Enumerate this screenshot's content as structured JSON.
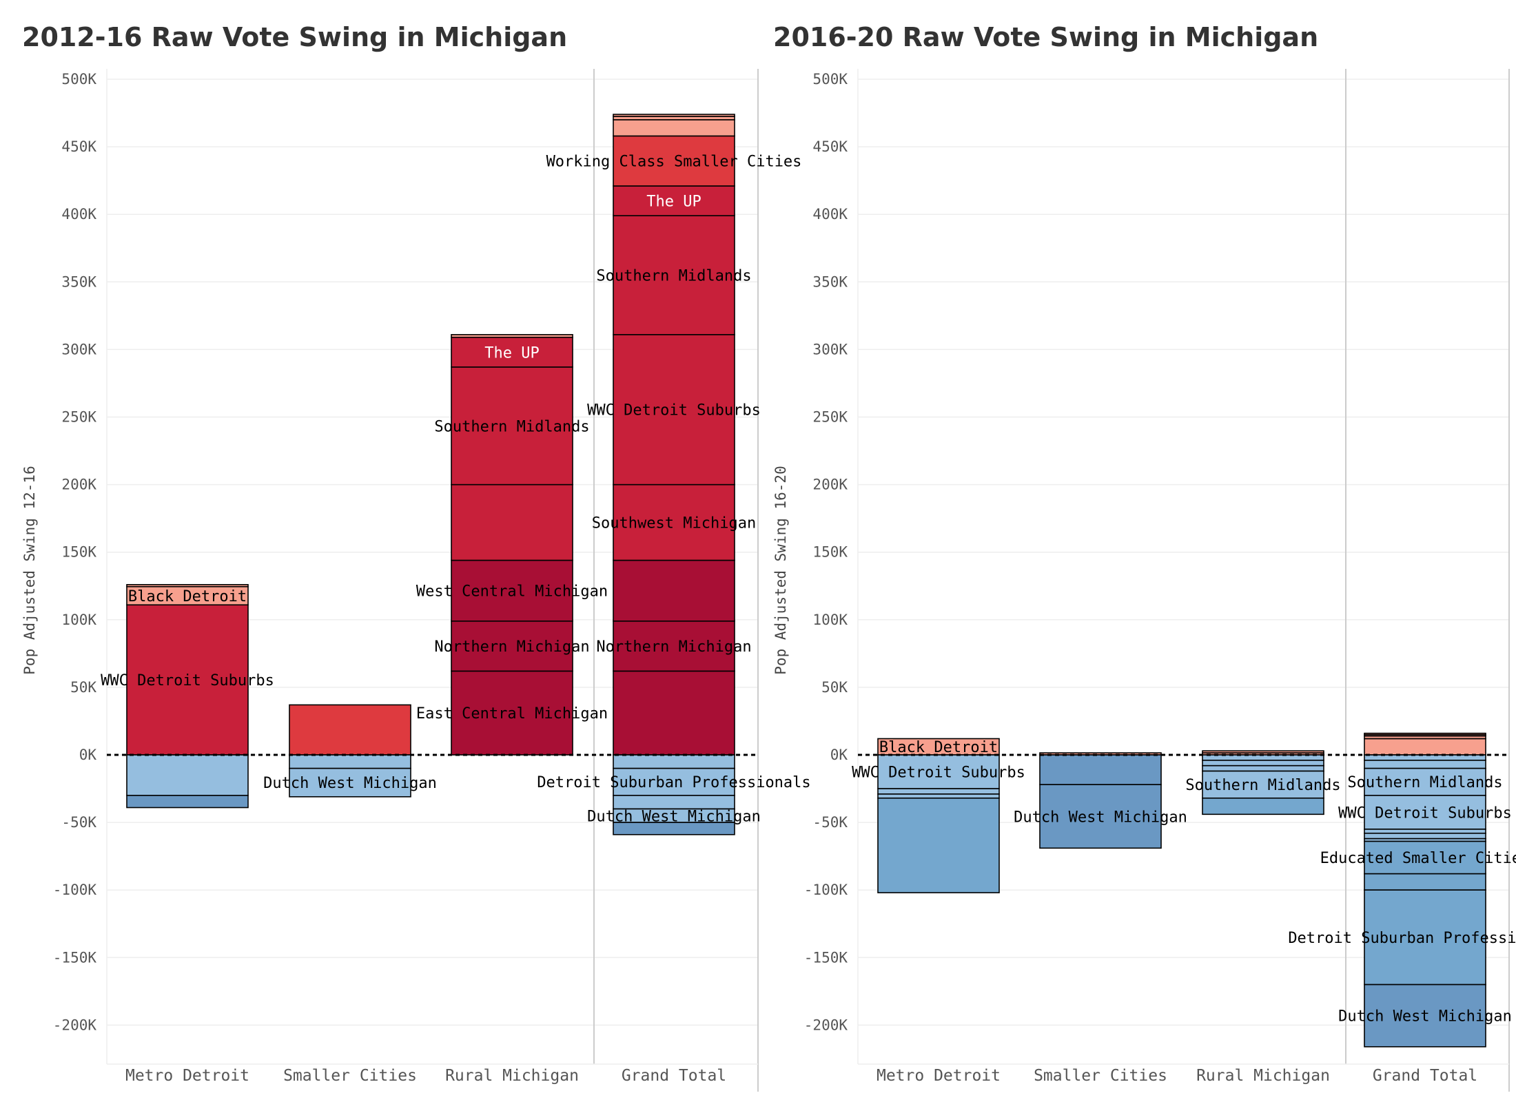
{
  "colors": {
    "black_detroit": "#f7a08e",
    "wwc_red": "#c8203a",
    "bright_red": "#de3a3f",
    "dark_red": "#a80f35",
    "light_blue": "#95bedf",
    "mid_blue": "#74a7ce",
    "dark_blue": "#6a98c3",
    "grid": "#eeeeee",
    "divider": "#cccccc",
    "zero_line": "#000000"
  },
  "chart_data": [
    {
      "type": "bar",
      "stacked": true,
      "title": "2012-16 Raw Vote Swing in Michigan",
      "ylabel": "Pop Adjusted Swing 12-16",
      "xlabel": "",
      "ylim": [
        -225000,
        505000
      ],
      "yticks": [
        500000,
        450000,
        400000,
        350000,
        300000,
        250000,
        200000,
        150000,
        100000,
        50000,
        0,
        -50000,
        -100000,
        -150000,
        -200000
      ],
      "ytick_labels": [
        "500K",
        "450K",
        "400K",
        "350K",
        "300K",
        "250K",
        "200K",
        "150K",
        "100K",
        "50K",
        "0K",
        "-50K",
        "-100K",
        "-150K",
        "-200K"
      ],
      "grid": true,
      "categories": [
        "Metro Detroit",
        "Smaller Cities",
        "Rural Michigan",
        "Grand Total"
      ],
      "stacks": [
        {
          "category": "Metro Detroit",
          "segments": [
            {
              "value": 111000,
              "color": "wwc_red",
              "label": "WWC Detroit Suburbs",
              "label_color": "#000000"
            },
            {
              "value": 13500,
              "color": "black_detroit",
              "label": "Black Detroit",
              "label_color": "#000000"
            },
            {
              "value": 1500,
              "color": "black_detroit",
              "label": "",
              "label_color": "#000000"
            },
            {
              "value": -30000,
              "color": "light_blue",
              "label": "",
              "label_color": "#000000"
            },
            {
              "value": -9000,
              "color": "dark_blue",
              "label": "",
              "label_color": "#000000"
            }
          ]
        },
        {
          "category": "Smaller Cities",
          "segments": [
            {
              "value": 37000,
              "color": "bright_red",
              "label": "",
              "label_color": "#000000"
            },
            {
              "value": -10000,
              "color": "light_blue",
              "label": "",
              "label_color": "#000000"
            },
            {
              "value": -21000,
              "color": "light_blue",
              "label": "Dutch West Michigan",
              "label_color": "#000000"
            }
          ]
        },
        {
          "category": "Rural Michigan",
          "segments": [
            {
              "value": 62000,
              "color": "dark_red",
              "label": "East Central Michigan",
              "label_color": "#000000"
            },
            {
              "value": 37000,
              "color": "dark_red",
              "label": "Northern Michigan",
              "label_color": "#000000"
            },
            {
              "value": 45000,
              "color": "dark_red",
              "label": "West Central Michigan",
              "label_color": "#000000"
            },
            {
              "value": 56000,
              "color": "wwc_red",
              "label": "",
              "label_color": "#000000"
            },
            {
              "value": 87000,
              "color": "wwc_red",
              "label": "Southern Midlands",
              "label_color": "#000000"
            },
            {
              "value": 22000,
              "color": "wwc_red",
              "label": "The UP",
              "label_color": "#ffffff"
            },
            {
              "value": 2000,
              "color": "black_detroit",
              "label": "",
              "label_color": "#000000"
            }
          ]
        },
        {
          "category": "Grand Total",
          "segments": [
            {
              "value": 62000,
              "color": "dark_red",
              "label": "",
              "label_color": "#000000"
            },
            {
              "value": 37000,
              "color": "dark_red",
              "label": "Northern Michigan",
              "label_color": "#000000"
            },
            {
              "value": 45000,
              "color": "dark_red",
              "label": "",
              "label_color": "#000000"
            },
            {
              "value": 56000,
              "color": "wwc_red",
              "label": "Southwest Michigan",
              "label_color": "#000000"
            },
            {
              "value": 111000,
              "color": "wwc_red",
              "label": "WWC Detroit Suburbs",
              "label_color": "#000000"
            },
            {
              "value": 88000,
              "color": "wwc_red",
              "label": "Southern Midlands",
              "label_color": "#000000"
            },
            {
              "value": 22000,
              "color": "wwc_red",
              "label": "The UP",
              "label_color": "#ffffff"
            },
            {
              "value": 37000,
              "color": "bright_red",
              "label": "Working Class Smaller Cities",
              "label_color": "#000000"
            },
            {
              "value": 12000,
              "color": "black_detroit",
              "label": "",
              "label_color": "#000000"
            },
            {
              "value": 2500,
              "color": "black_detroit",
              "label": "",
              "label_color": "#000000"
            },
            {
              "value": 1500,
              "color": "black_detroit",
              "label": "",
              "label_color": "#000000"
            },
            {
              "value": -10000,
              "color": "light_blue",
              "label": "",
              "label_color": "#000000"
            },
            {
              "value": -20000,
              "color": "light_blue",
              "label": "Detroit Suburban Professionals",
              "label_color": "#000000"
            },
            {
              "value": -10000,
              "color": "light_blue",
              "label": "",
              "label_color": "#000000"
            },
            {
              "value": -10000,
              "color": "light_blue",
              "label": "Dutch West Michigan",
              "label_color": "#000000"
            },
            {
              "value": -9000,
              "color": "dark_blue",
              "label": "",
              "label_color": "#000000"
            }
          ]
        }
      ]
    },
    {
      "type": "bar",
      "stacked": true,
      "title": "2016-20 Raw Vote Swing in Michigan",
      "ylabel": "Pop Adjusted Swing 16-20",
      "xlabel": "",
      "ylim": [
        -225000,
        505000
      ],
      "yticks": [
        500000,
        450000,
        400000,
        350000,
        300000,
        250000,
        200000,
        150000,
        100000,
        50000,
        0,
        -50000,
        -100000,
        -150000,
        -200000
      ],
      "ytick_labels": [
        "500K",
        "450K",
        "400K",
        "350K",
        "300K",
        "250K",
        "200K",
        "150K",
        "100K",
        "50K",
        "0K",
        "-50K",
        "-100K",
        "-150K",
        "-200K"
      ],
      "grid": true,
      "categories": [
        "Metro Detroit",
        "Smaller Cities",
        "Rural Michigan",
        "Grand Total"
      ],
      "stacks": [
        {
          "category": "Metro Detroit",
          "segments": [
            {
              "value": 12000,
              "color": "black_detroit",
              "label": "Black Detroit",
              "label_color": "#000000"
            },
            {
              "value": -25000,
              "color": "light_blue",
              "label": "WWC Detroit Suburbs",
              "label_color": "#000000"
            },
            {
              "value": -4000,
              "color": "light_blue",
              "label": "",
              "label_color": "#000000"
            },
            {
              "value": -3000,
              "color": "light_blue",
              "label": "",
              "label_color": "#000000"
            },
            {
              "value": -70000,
              "color": "mid_blue",
              "label": "",
              "label_color": "#000000"
            }
          ]
        },
        {
          "category": "Smaller Cities",
          "segments": [
            {
              "value": 1500,
              "color": "black_detroit",
              "label": "",
              "label_color": "#000000"
            },
            {
              "value": -22000,
              "color": "dark_blue",
              "label": "",
              "label_color": "#000000"
            },
            {
              "value": -47000,
              "color": "dark_blue",
              "label": "Dutch West Michigan",
              "label_color": "#000000"
            }
          ]
        },
        {
          "category": "Rural Michigan",
          "segments": [
            {
              "value": 1500,
              "color": "black_detroit",
              "label": "",
              "label_color": "#000000"
            },
            {
              "value": 1500,
              "color": "black_detroit",
              "label": "",
              "label_color": "#000000"
            },
            {
              "value": -4000,
              "color": "light_blue",
              "label": "",
              "label_color": "#000000"
            },
            {
              "value": -4000,
              "color": "light_blue",
              "label": "",
              "label_color": "#000000"
            },
            {
              "value": -4000,
              "color": "light_blue",
              "label": "",
              "label_color": "#000000"
            },
            {
              "value": -20000,
              "color": "light_blue",
              "label": "Southern Midlands",
              "label_color": "#000000"
            },
            {
              "value": -12000,
              "color": "mid_blue",
              "label": "",
              "label_color": "#000000"
            }
          ]
        },
        {
          "category": "Grand Total",
          "segments": [
            {
              "value": 12000,
              "color": "black_detroit",
              "label": "",
              "label_color": "#000000"
            },
            {
              "value": 2000,
              "color": "black_detroit",
              "label": "",
              "label_color": "#000000"
            },
            {
              "value": 1000,
              "color": "black_detroit",
              "label": "",
              "label_color": "#000000"
            },
            {
              "value": 1000,
              "color": "black_detroit",
              "label": "",
              "label_color": "#000000"
            },
            {
              "value": -4000,
              "color": "light_blue",
              "label": "",
              "label_color": "#000000"
            },
            {
              "value": -6000,
              "color": "light_blue",
              "label": "",
              "label_color": "#000000"
            },
            {
              "value": -20000,
              "color": "light_blue",
              "label": "Southern Midlands",
              "label_color": "#000000"
            },
            {
              "value": -25000,
              "color": "light_blue",
              "label": "WWC Detroit Suburbs",
              "label_color": "#000000"
            },
            {
              "value": -3000,
              "color": "light_blue",
              "label": "",
              "label_color": "#000000"
            },
            {
              "value": -4000,
              "color": "light_blue",
              "label": "",
              "label_color": "#000000"
            },
            {
              "value": -2000,
              "color": "light_blue",
              "label": "",
              "label_color": "#000000"
            },
            {
              "value": -24000,
              "color": "mid_blue",
              "label": "Educated Smaller Cities",
              "label_color": "#000000"
            },
            {
              "value": -12000,
              "color": "mid_blue",
              "label": "",
              "label_color": "#000000"
            },
            {
              "value": -70000,
              "color": "mid_blue",
              "label": "Detroit Suburban Professionals",
              "label_color": "#000000"
            },
            {
              "value": -46000,
              "color": "dark_blue",
              "label": "Dutch West Michigan",
              "label_color": "#000000"
            }
          ]
        }
      ]
    }
  ]
}
